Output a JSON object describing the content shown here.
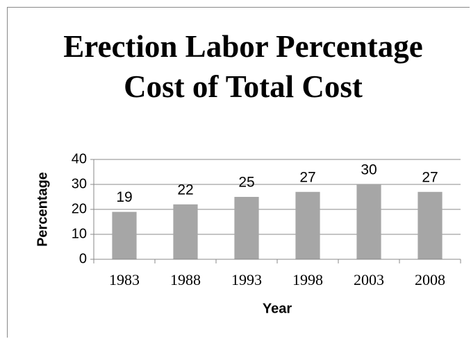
{
  "chart_data": {
    "type": "bar",
    "title": "Erection Labor Percentage Cost of Total Cost",
    "x_label": "Year",
    "y_label": "Percentage",
    "categories": [
      "1983",
      "1988",
      "1993",
      "1998",
      "2003",
      "2008"
    ],
    "values": [
      19,
      22,
      25,
      27,
      30,
      27
    ],
    "color": "#a6a6a6",
    "ylim": [
      0,
      40
    ],
    "yticks": [
      0,
      10,
      20,
      30,
      40
    ],
    "grid": true
  }
}
